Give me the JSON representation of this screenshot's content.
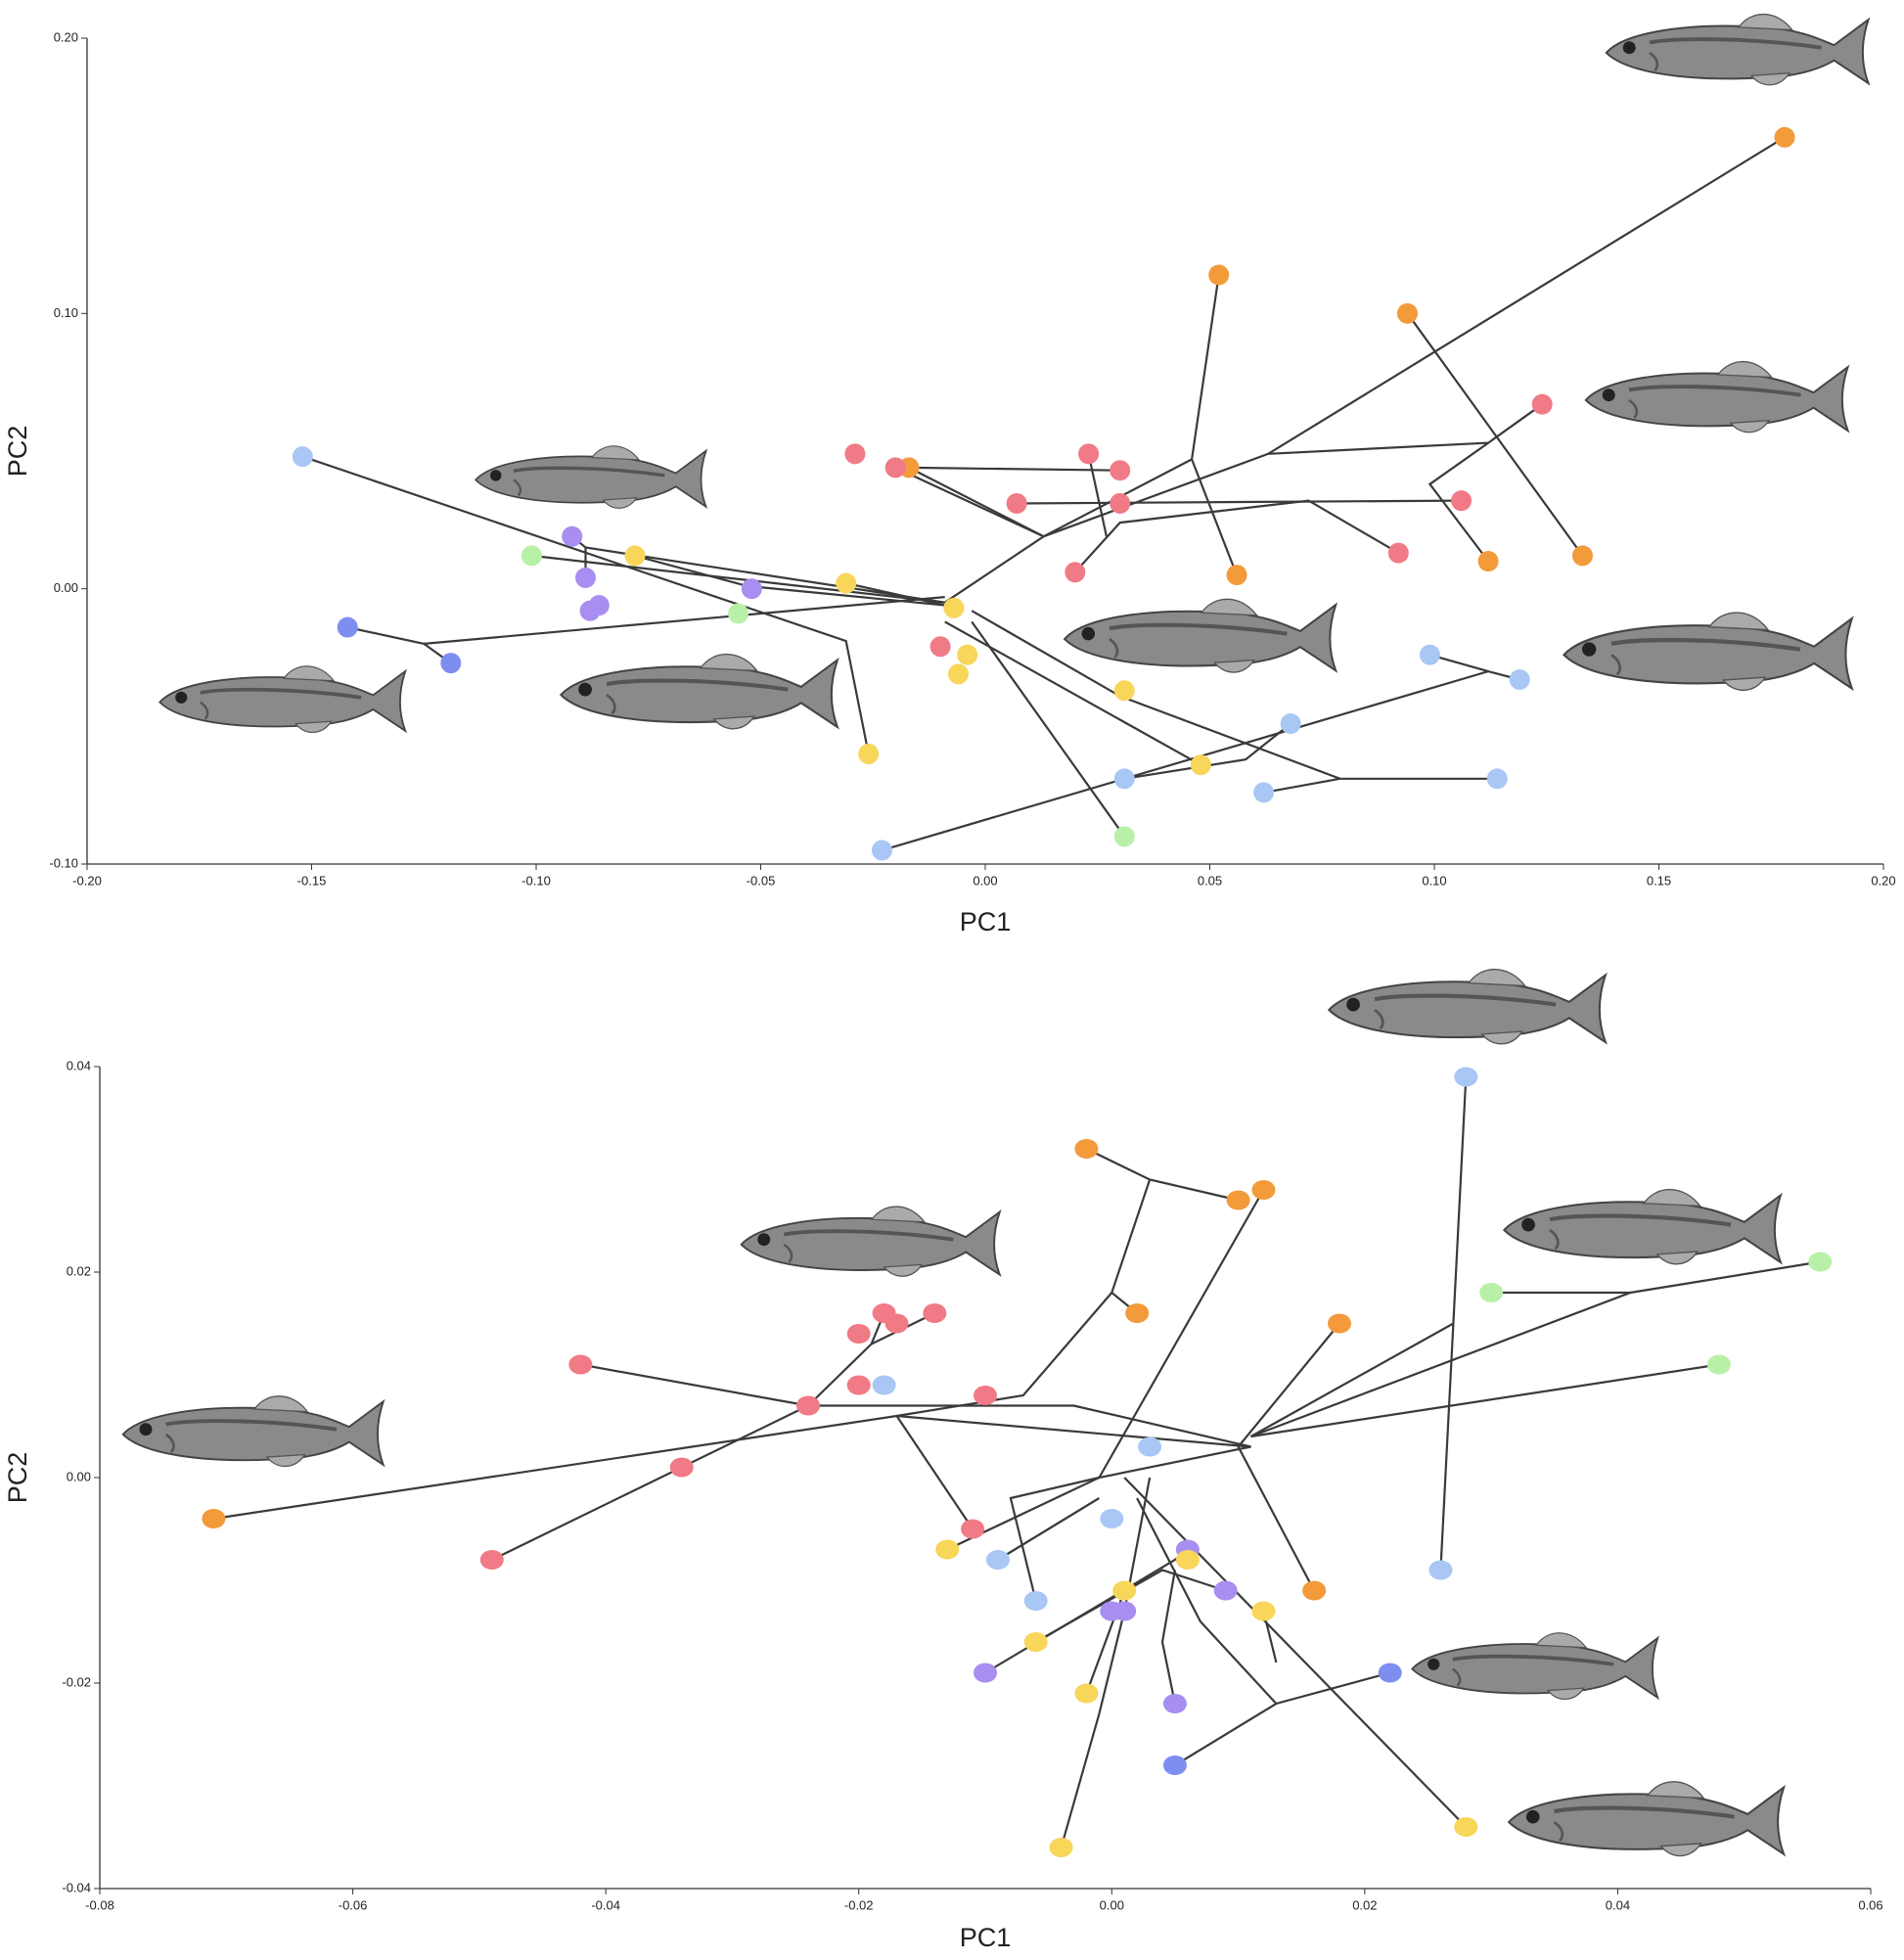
{
  "chart_data": [
    {
      "type": "scatter",
      "xlabel": "PC1",
      "ylabel": "PC2",
      "xlim": [
        -0.2,
        0.2
      ],
      "ylim": [
        -0.1,
        0.2
      ],
      "xticks": [
        {
          "value": -0.2,
          "label": "-0.20"
        },
        {
          "value": -0.15,
          "label": "-0.15"
        },
        {
          "value": -0.1,
          "label": "-0.10"
        },
        {
          "value": -0.05,
          "label": "-0.05"
        },
        {
          "value": 0,
          "label": "0.00"
        },
        {
          "value": 0.05,
          "label": "0.05"
        },
        {
          "value": 0.1,
          "label": "0.10"
        },
        {
          "value": 0.15,
          "label": "0.15"
        },
        {
          "value": 0.2,
          "label": "0.20"
        }
      ],
      "yticks": [
        {
          "value": -0.1,
          "label": "-0.10"
        },
        {
          "value": 0,
          "label": "0.00"
        },
        {
          "value": 0.1,
          "label": "0.10"
        },
        {
          "value": 0.2,
          "label": "0.20"
        }
      ],
      "line_color": "#3a3a3a",
      "lines": [
        {
          "x": [
            -0.152,
            -0.031,
            -0.026
          ],
          "y": [
            0.048,
            -0.019,
            -0.06
          ]
        },
        {
          "x": [
            -0.142,
            -0.125,
            -0.119
          ],
          "y": [
            -0.014,
            -0.02,
            -0.027
          ]
        },
        {
          "x": [
            -0.125,
            -0.009
          ],
          "y": [
            -0.02,
            -0.003
          ]
        },
        {
          "x": [
            -0.101,
            -0.009
          ],
          "y": [
            0.012,
            -0.005
          ]
        },
        {
          "x": [
            -0.092,
            -0.089,
            -0.009
          ],
          "y": [
            0.019,
            0.015,
            -0.005
          ]
        },
        {
          "x": [
            -0.089,
            -0.089
          ],
          "y": [
            0.004,
            0.015
          ]
        },
        {
          "x": [
            -0.078,
            -0.053,
            -0.009
          ],
          "y": [
            0.012,
            0.001,
            -0.006
          ]
        },
        {
          "x": [
            -0.031,
            -0.009
          ],
          "y": [
            0.002,
            -0.006
          ]
        },
        {
          "x": [
            -0.009,
            0.013,
            0.046,
            0.052
          ],
          "y": [
            -0.005,
            0.019,
            0.047,
            0.114
          ]
        },
        {
          "x": [
            0.046,
            0.056
          ],
          "y": [
            0.047,
            0.005
          ]
        },
        {
          "x": [
            0.013,
            0.063,
            0.178
          ],
          "y": [
            0.019,
            0.049,
            0.164
          ]
        },
        {
          "x": [
            0.063,
            0.112,
            0.124
          ],
          "y": [
            0.049,
            0.053,
            0.067
          ]
        },
        {
          "x": [
            0.112,
            0.099,
            0.112
          ],
          "y": [
            0.053,
            0.038,
            0.01
          ]
        },
        {
          "x": [
            0.094,
            0.133
          ],
          "y": [
            0.1,
            0.012
          ]
        },
        {
          "x": [
            -0.017,
            0.013
          ],
          "y": [
            0.044,
            0.019
          ]
        },
        {
          "x": [
            -0.02,
            0.013
          ],
          "y": [
            0.044,
            0.019
          ]
        },
        {
          "x": [
            -0.017,
            0.03
          ],
          "y": [
            0.044,
            0.043
          ]
        },
        {
          "x": [
            0.023,
            0.027
          ],
          "y": [
            0.049,
            0.019
          ]
        },
        {
          "x": [
            0.007,
            0.106
          ],
          "y": [
            0.031,
            0.032
          ]
        },
        {
          "x": [
            0.02,
            0.03,
            0.072,
            0.092
          ],
          "y": [
            0.006,
            0.024,
            0.032,
            0.013
          ]
        },
        {
          "x": [
            -0.003,
            0.03,
            0.079,
            0.114
          ],
          "y": [
            -0.008,
            -0.039,
            -0.069,
            -0.069
          ]
        },
        {
          "x": [
            0.079,
            0.062
          ],
          "y": [
            -0.069,
            -0.074
          ]
        },
        {
          "x": [
            0.031,
            0.058,
            0.068
          ],
          "y": [
            -0.069,
            -0.062,
            -0.049
          ]
        },
        {
          "x": [
            -0.009,
            0.048
          ],
          "y": [
            -0.012,
            -0.064
          ]
        },
        {
          "x": [
            -0.023,
            0.112,
            0.119
          ],
          "y": [
            -0.095,
            -0.03,
            -0.033
          ]
        },
        {
          "x": [
            0.112,
            0.099
          ],
          "y": [
            -0.03,
            -0.024
          ]
        },
        {
          "x": [
            -0.003,
            0.031
          ],
          "y": [
            -0.012,
            -0.09
          ]
        }
      ],
      "series": [
        {
          "color": "#f39a3b",
          "x": [
            0.178,
            0.052,
            0.094,
            0.056,
            0.112,
            0.133,
            -0.017
          ],
          "y": [
            0.164,
            0.114,
            0.1,
            0.005,
            0.01,
            0.012,
            0.044
          ]
        },
        {
          "color": "#f07a85",
          "x": [
            -0.029,
            -0.02,
            0.023,
            0.03,
            0.007,
            0.03,
            0.02,
            0.092,
            0.106,
            0.124,
            -0.01
          ],
          "y": [
            0.049,
            0.044,
            0.049,
            0.043,
            0.031,
            0.031,
            0.006,
            0.013,
            0.032,
            0.067,
            -0.021
          ]
        },
        {
          "color": "#a9c7f4",
          "x": [
            -0.152,
            0.099,
            0.119,
            0.068,
            0.031,
            0.062,
            0.114,
            -0.023
          ],
          "y": [
            0.048,
            -0.024,
            -0.033,
            -0.049,
            -0.069,
            -0.074,
            -0.069,
            -0.095
          ]
        },
        {
          "color": "#7e8ef0",
          "x": [
            -0.142,
            -0.119
          ],
          "y": [
            -0.014,
            -0.027
          ]
        },
        {
          "color": "#a78ef0",
          "x": [
            -0.092,
            -0.089,
            -0.088,
            -0.086,
            -0.052
          ],
          "y": [
            0.019,
            0.004,
            -0.008,
            -0.006,
            0.0
          ]
        },
        {
          "color": "#f7d65a",
          "x": [
            -0.078,
            -0.031,
            -0.007,
            -0.004,
            -0.006,
            0.031,
            0.048,
            -0.026
          ],
          "y": [
            0.012,
            0.002,
            -0.007,
            -0.024,
            -0.031,
            -0.037,
            -0.064,
            -0.06
          ]
        },
        {
          "color": "#b8f0a8",
          "x": [
            -0.101,
            -0.055,
            0.031
          ],
          "y": [
            0.012,
            -0.009,
            -0.09
          ]
        }
      ]
    },
    {
      "type": "scatter",
      "xlabel": "PC1",
      "ylabel": "PC2",
      "xlim": [
        -0.08,
        0.06
      ],
      "ylim": [
        -0.04,
        0.04
      ],
      "xticks": [
        {
          "value": -0.08,
          "label": "-0.08"
        },
        {
          "value": -0.06,
          "label": "-0.06"
        },
        {
          "value": -0.04,
          "label": "-0.04"
        },
        {
          "value": -0.02,
          "label": "-0.02"
        },
        {
          "value": 0,
          "label": "0.00"
        },
        {
          "value": 0.02,
          "label": "0.02"
        },
        {
          "value": 0.04,
          "label": "0.04"
        },
        {
          "value": 0.06,
          "label": "0.06"
        }
      ],
      "yticks": [
        {
          "value": -0.04,
          "label": "-0.04"
        },
        {
          "value": -0.02,
          "label": "-0.02"
        },
        {
          "value": 0,
          "label": "0.00"
        },
        {
          "value": 0.02,
          "label": "0.02"
        },
        {
          "value": 0.04,
          "label": "0.04"
        }
      ],
      "line_color": "#3a3a3a",
      "lines": [
        {
          "x": [
            -0.071,
            -0.017,
            0.011
          ],
          "y": [
            -0.004,
            0.006,
            0.003
          ]
        },
        {
          "x": [
            -0.002,
            0.003,
            0.01
          ],
          "y": [
            0.032,
            0.029,
            0.027
          ]
        },
        {
          "x": [
            0.003,
            0.0,
            0.002
          ],
          "y": [
            0.029,
            0.018,
            0.016
          ]
        },
        {
          "x": [
            0.0,
            -0.007,
            -0.017
          ],
          "y": [
            0.018,
            0.008,
            0.006
          ]
        },
        {
          "x": [
            0.012,
            -0.001
          ],
          "y": [
            0.028,
            0.0
          ]
        },
        {
          "x": [
            0.028,
            0.027,
            0.026
          ],
          "y": [
            0.039,
            0.015,
            -0.009
          ]
        },
        {
          "x": [
            0.027,
            0.011
          ],
          "y": [
            0.015,
            0.004
          ]
        },
        {
          "x": [
            0.018,
            0.01,
            0.016
          ],
          "y": [
            0.015,
            0.003,
            -0.011
          ]
        },
        {
          "x": [
            0.056,
            0.041,
            0.011
          ],
          "y": [
            0.021,
            0.018,
            0.004
          ]
        },
        {
          "x": [
            0.03,
            0.041
          ],
          "y": [
            0.018,
            0.018
          ]
        },
        {
          "x": [
            0.048,
            0.011
          ],
          "y": [
            0.011,
            0.004
          ]
        },
        {
          "x": [
            -0.018,
            -0.019,
            -0.024,
            -0.034,
            -0.049
          ],
          "y": [
            0.016,
            0.013,
            0.007,
            0.001,
            -0.008
          ]
        },
        {
          "x": [
            -0.014,
            -0.019
          ],
          "y": [
            0.016,
            0.013
          ]
        },
        {
          "x": [
            -0.042,
            -0.024,
            -0.003,
            0.011
          ],
          "y": [
            0.011,
            0.007,
            0.007,
            0.003
          ]
        },
        {
          "x": [
            -0.011,
            -0.017
          ],
          "y": [
            -0.005,
            0.006
          ]
        },
        {
          "x": [
            0.005,
            0.013,
            0.022
          ],
          "y": [
            -0.028,
            -0.022,
            -0.019
          ]
        },
        {
          "x": [
            0.013,
            0.007,
            0.002
          ],
          "y": [
            -0.022,
            -0.014,
            -0.002
          ]
        },
        {
          "x": [
            -0.004,
            -0.001,
            0.001,
            0.003
          ],
          "y": [
            -0.036,
            -0.023,
            -0.013,
            0.0
          ]
        },
        {
          "x": [
            0.028,
            0.001
          ],
          "y": [
            -0.034,
            0.0
          ]
        },
        {
          "x": [
            -0.013,
            -0.001,
            0.011
          ],
          "y": [
            -0.007,
            0.0,
            0.003
          ]
        },
        {
          "x": [
            -0.009,
            -0.001
          ],
          "y": [
            -0.008,
            -0.002
          ]
        },
        {
          "x": [
            -0.006,
            -0.008,
            -0.001
          ],
          "y": [
            -0.012,
            -0.002,
            0.0
          ]
        },
        {
          "x": [
            -0.01,
            0.005,
            0.006
          ],
          "y": [
            -0.019,
            -0.008,
            -0.007
          ]
        },
        {
          "x": [
            -0.006,
            0.004,
            0.009
          ],
          "y": [
            -0.016,
            -0.009,
            -0.011
          ]
        },
        {
          "x": [
            0.012,
            0.013
          ],
          "y": [
            -0.013,
            -0.018
          ]
        },
        {
          "x": [
            -0.002,
            0.001
          ],
          "y": [
            -0.021,
            -0.011
          ]
        },
        {
          "x": [
            0.005,
            0.004,
            0.005
          ],
          "y": [
            -0.022,
            -0.016,
            -0.009
          ]
        }
      ],
      "series": [
        {
          "color": "#f39a3b",
          "x": [
            -0.002,
            0.01,
            0.012,
            0.002,
            0.018,
            0.016,
            -0.071
          ],
          "y": [
            0.032,
            0.027,
            0.028,
            0.016,
            0.015,
            -0.011,
            -0.004
          ]
        },
        {
          "color": "#f07a85",
          "x": [
            -0.018,
            -0.014,
            -0.02,
            -0.017,
            -0.042,
            -0.024,
            -0.02,
            -0.01,
            -0.034,
            -0.011,
            -0.049
          ],
          "y": [
            0.016,
            0.016,
            0.014,
            0.015,
            0.011,
            0.007,
            0.009,
            0.008,
            0.001,
            -0.005,
            -0.008
          ]
        },
        {
          "color": "#a9c7f4",
          "x": [
            0.028,
            -0.018,
            0.003,
            0.0,
            -0.009,
            -0.006,
            0.026
          ],
          "y": [
            0.039,
            0.009,
            0.003,
            -0.004,
            -0.008,
            -0.012,
            -0.009
          ]
        },
        {
          "color": "#7e8ef0",
          "x": [
            0.022,
            0.005
          ],
          "y": [
            -0.019,
            -0.028
          ]
        },
        {
          "color": "#a78ef0",
          "x": [
            0.006,
            0.009,
            0.0,
            0.001,
            -0.01,
            0.005
          ],
          "y": [
            -0.007,
            -0.011,
            -0.013,
            -0.013,
            -0.019,
            -0.022
          ]
        },
        {
          "color": "#f7d65a",
          "x": [
            -0.013,
            0.006,
            0.001,
            0.012,
            -0.006,
            -0.002,
            -0.004,
            0.028
          ],
          "y": [
            -0.007,
            -0.008,
            -0.011,
            -0.013,
            -0.016,
            -0.021,
            -0.036,
            -0.034
          ]
        },
        {
          "color": "#b8f0a8",
          "x": [
            0.056,
            0.03,
            0.048
          ],
          "y": [
            0.021,
            0.018,
            0.011
          ]
        }
      ]
    }
  ]
}
